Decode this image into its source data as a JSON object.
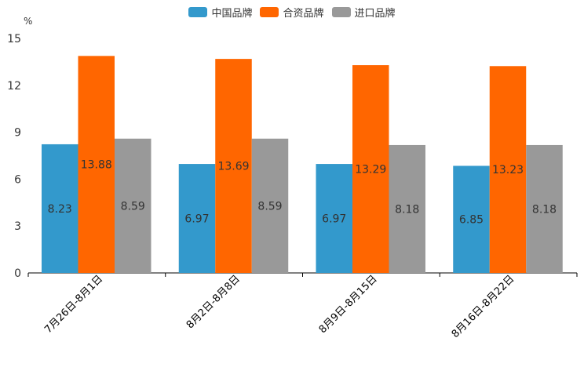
{
  "chart_data": {
    "type": "bar",
    "title": "",
    "unit_label": "%",
    "ylim": [
      0,
      15
    ],
    "yticks": [
      "0",
      "3",
      "6",
      "9",
      "12",
      "15"
    ],
    "categories": [
      "7月26日-8月1日",
      "8月2日-8月8日",
      "8月9日-8月15日",
      "8月16日-8月22日"
    ],
    "series": [
      {
        "name": "中国品牌",
        "color": "#3399cc",
        "values": [
          8.23,
          6.97,
          6.97,
          6.85
        ],
        "labels": [
          "8.23",
          "6.97",
          "6.97",
          "6.85"
        ]
      },
      {
        "name": "合资品牌",
        "color": "#ff6600",
        "values": [
          13.88,
          13.69,
          13.29,
          13.23
        ],
        "labels": [
          "13.88",
          "13.69",
          "13.29",
          "13.23"
        ]
      },
      {
        "name": "进口品牌",
        "color": "#999999",
        "values": [
          8.59,
          8.59,
          8.18,
          8.18
        ],
        "labels": [
          "8.59",
          "8.59",
          "8.18",
          "8.18"
        ]
      }
    ]
  }
}
